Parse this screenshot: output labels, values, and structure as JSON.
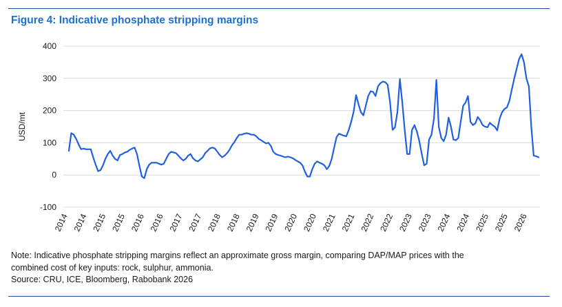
{
  "figure": {
    "title": "Figure 4: Indicative phosphate stripping margins",
    "note_line1": "Note: Indicative phosphate stripping margins reflect an approximate gross margin, comparing DAP/MAP prices with the",
    "note_line2": "combined cost of key inputs: rock, sulphur, ammonia.",
    "source": "Source: CRU, ICE, Bloomberg, Rabobank 2026"
  },
  "colors": {
    "line": "#1f5fe0",
    "title": "#1d6fd0",
    "grid": "#d9d9d9",
    "rule": "#1f4e9c"
  },
  "chart_data": {
    "type": "line",
    "title": "",
    "xlabel": "",
    "ylabel": "USD/mt",
    "ylim": [
      -100,
      400
    ],
    "yticks": [
      -100,
      0,
      100,
      200,
      300,
      400
    ],
    "grid": true,
    "x_tick_labels": [
      "2014",
      "2014",
      "2015",
      "2015",
      "2016",
      "2016",
      "2017",
      "2017",
      "2018",
      "2018",
      "2019",
      "2019",
      "2020",
      "2020",
      "2021",
      "2021",
      "2022",
      "2022",
      "2023",
      "2023",
      "2024",
      "2024",
      "2025",
      "2025",
      "2026"
    ],
    "series": [
      {
        "values": [
          75,
          130,
          125,
          112,
          95,
          80,
          82,
          80,
          80,
          80,
          55,
          32,
          12,
          15,
          30,
          50,
          65,
          75,
          60,
          50,
          45,
          62,
          65,
          70,
          72,
          78,
          82,
          85,
          65,
          28,
          -5,
          -10,
          18,
          32,
          38,
          38,
          38,
          35,
          32,
          35,
          50,
          65,
          72,
          70,
          68,
          60,
          52,
          45,
          50,
          60,
          65,
          52,
          45,
          42,
          48,
          55,
          68,
          75,
          83,
          85,
          82,
          72,
          62,
          55,
          60,
          68,
          78,
          92,
          102,
          115,
          125,
          125,
          128,
          130,
          128,
          125,
          125,
          120,
          112,
          108,
          103,
          98,
          100,
          90,
          72,
          65,
          62,
          60,
          57,
          55,
          57,
          55,
          52,
          47,
          42,
          38,
          30,
          10,
          -5,
          -5,
          18,
          35,
          42,
          38,
          35,
          30,
          18,
          28,
          50,
          85,
          118,
          128,
          125,
          122,
          120,
          140,
          165,
          195,
          248,
          220,
          195,
          185,
          215,
          245,
          260,
          258,
          245,
          275,
          285,
          290,
          288,
          280,
          225,
          140,
          148,
          195,
          298,
          225,
          140,
          65,
          65,
          140,
          155,
          135,
          105,
          65,
          30,
          35,
          110,
          125,
          175,
          295,
          150,
          115,
          105,
          125,
          178,
          150,
          110,
          108,
          115,
          165,
          215,
          225,
          245,
          165,
          155,
          160,
          180,
          170,
          155,
          150,
          148,
          162,
          155,
          150,
          138,
          175,
          195,
          205,
          210,
          230,
          265,
          300,
          330,
          360,
          375,
          350,
          300,
          275,
          150,
          60,
          58,
          55
        ]
      }
    ]
  }
}
